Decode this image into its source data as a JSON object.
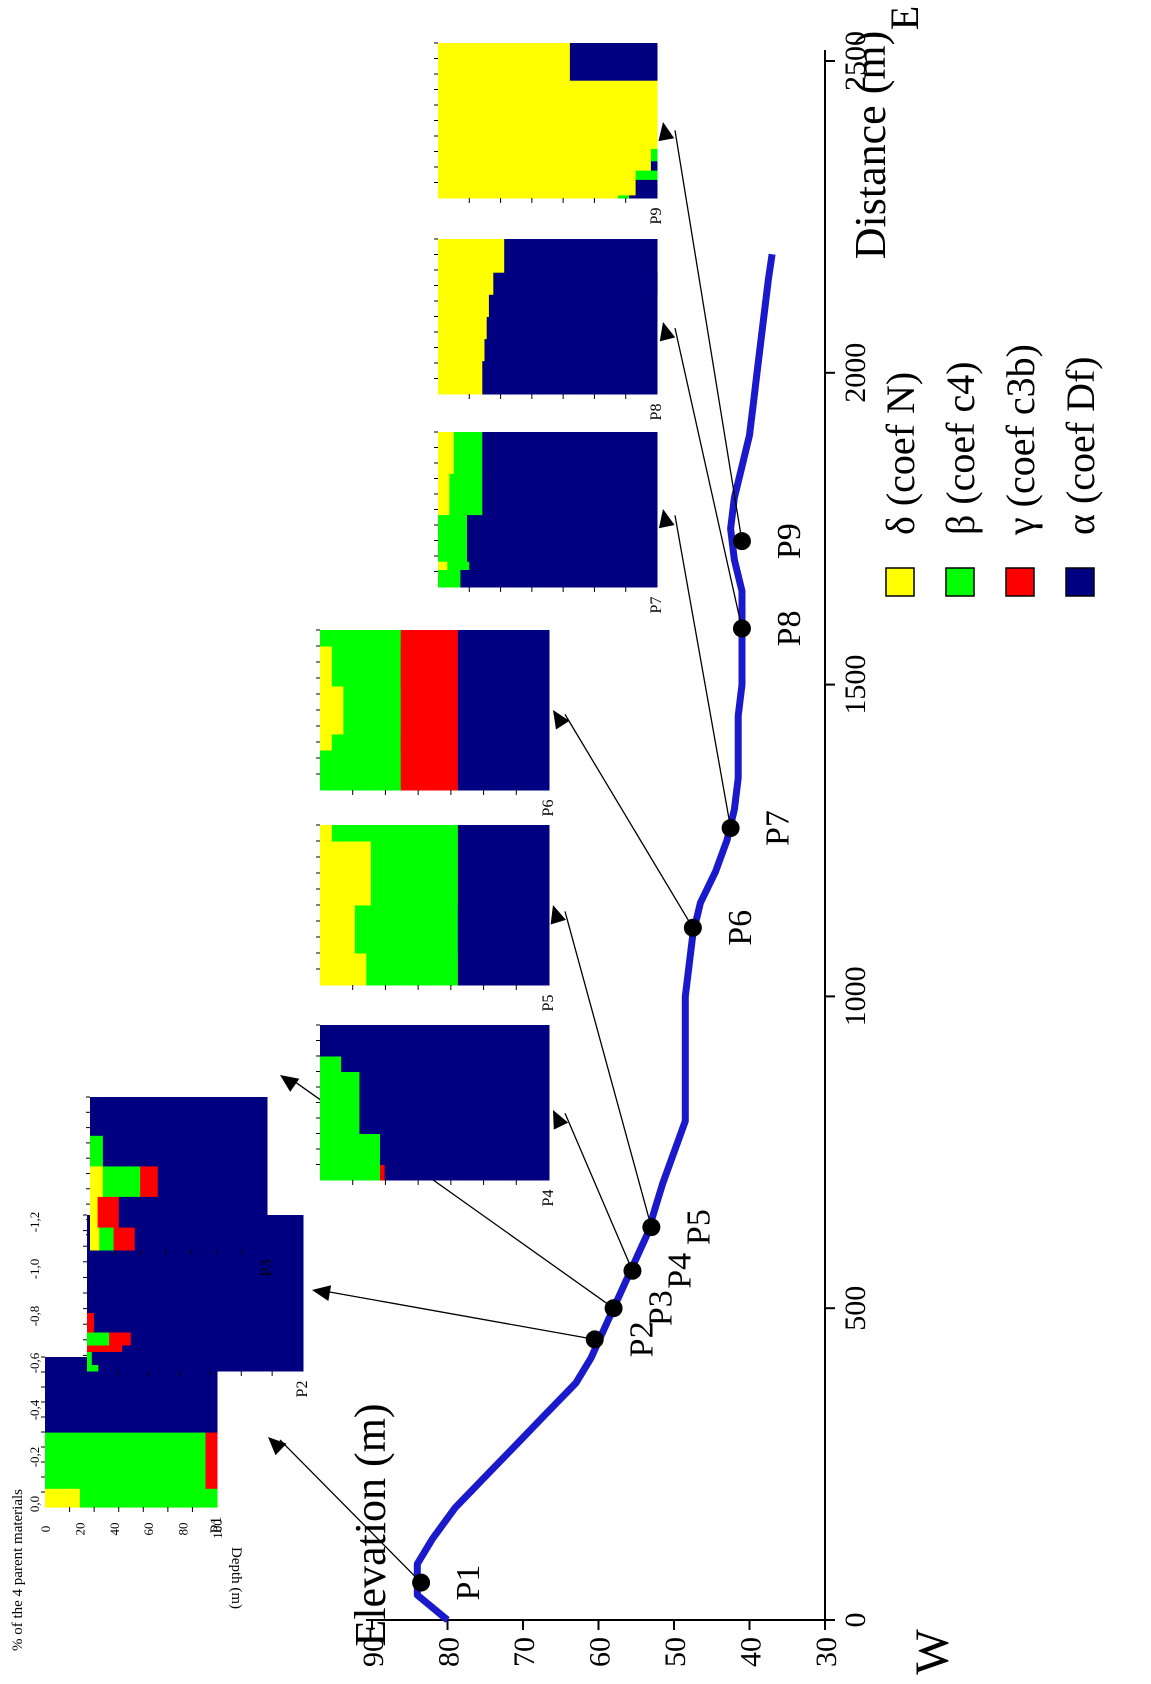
{
  "chart_data": [
    {
      "type": "line",
      "xlabel": "Distance (m)",
      "ylabel": "Elevation (m)",
      "xlim": [
        0,
        2500
      ],
      "ylim": [
        30,
        90
      ],
      "x_ticks": [
        0,
        500,
        1000,
        1500,
        2000,
        2500
      ],
      "y_ticks": [
        30,
        40,
        50,
        60,
        70,
        80,
        90
      ],
      "direction_start": "W",
      "direction_end": "E",
      "orientation": "rotated 90 degrees counter-clockwise",
      "series": [
        {
          "color": "#1a1acc",
          "x": [
            0,
            40,
            90,
            130,
            180,
            230,
            280,
            330,
            380,
            420,
            460,
            500,
            540,
            580,
            620,
            660,
            700,
            750,
            800,
            850,
            900,
            950,
            1000,
            1050,
            1100,
            1150,
            1200,
            1250,
            1300,
            1350,
            1400,
            1450,
            1500,
            1550,
            1600,
            1650,
            1700,
            1750,
            1800,
            1850,
            1900,
            1950,
            2000,
            2050,
            2100,
            2150,
            2190
          ],
          "y": [
            80,
            84,
            84,
            82,
            79,
            75,
            71,
            67,
            63,
            61,
            59.5,
            58,
            56.5,
            55,
            53.5,
            52.5,
            51.5,
            50,
            48.5,
            48.5,
            48.5,
            48.5,
            48.5,
            48,
            47.5,
            46.5,
            44.5,
            43,
            42,
            41.5,
            41.5,
            41.5,
            41,
            41,
            41,
            41,
            42,
            42.5,
            42,
            41,
            40,
            39.5,
            39,
            38.5,
            38,
            37.5,
            37
          ]
        }
      ],
      "points": [
        {
          "label": "P1",
          "x": 60,
          "y": 83.5
        },
        {
          "label": "P2",
          "x": 450,
          "y": 60.5
        },
        {
          "label": "P3",
          "x": 500,
          "y": 58
        },
        {
          "label": "P4",
          "x": 560,
          "y": 55.5
        },
        {
          "label": "P5",
          "x": 630,
          "y": 53
        },
        {
          "label": "P6",
          "x": 1110,
          "y": 47.5
        },
        {
          "label": "P7",
          "x": 1270,
          "y": 42.5
        },
        {
          "label": "P8",
          "x": 1590,
          "y": 41
        },
        {
          "label": "P9",
          "x": 1730,
          "y": 41
        }
      ]
    },
    {
      "type": "area",
      "xlabel": "% of the 4 parent materials",
      "ylabel": "Depth (m)",
      "x_ticks": [
        "0",
        "20",
        "40",
        "60",
        "80",
        "100"
      ],
      "y_ticks": [
        "0,0",
        "-0,2",
        "-0,4",
        "-0,6",
        "-0,8",
        "-1,0",
        "-1,2"
      ],
      "series_order": [
        "α (coef Df)",
        "γ (coef c3b)",
        "β (coef c4)",
        "δ (coef N)"
      ],
      "profiles": [
        {
          "label": "P1",
          "layers": [
            {
              "depth": [
                0,
                0.1
              ],
              "pct": [
                0,
                0,
                80,
                20
              ]
            },
            {
              "depth": [
                0.1,
                0.4
              ],
              "pct": [
                0,
                7,
                93,
                0
              ]
            },
            {
              "depth": [
                0.4,
                0.5
              ],
              "pct": [
                100,
                0,
                0,
                0
              ]
            },
            {
              "depth": [
                0.5,
                0.8
              ],
              "pct": [
                100,
                0,
                0,
                0
              ]
            }
          ]
        },
        {
          "label": "P2",
          "layers": [
            {
              "depth": [
                0,
                0.05
              ],
              "pct": [
                95,
                0,
                5,
                0
              ]
            },
            {
              "depth": [
                0.05,
                0.15
              ],
              "pct": [
                98,
                0,
                2,
                0
              ]
            },
            {
              "depth": [
                0.15,
                0.2
              ],
              "pct": [
                84,
                16,
                0,
                0
              ]
            },
            {
              "depth": [
                0.2,
                0.3
              ],
              "pct": [
                80,
                10,
                10,
                0
              ]
            },
            {
              "depth": [
                0.3,
                0.45
              ],
              "pct": [
                97,
                3,
                0,
                0
              ]
            },
            {
              "depth": [
                0.45,
                1.2
              ],
              "pct": [
                100,
                0,
                0,
                0
              ]
            }
          ]
        },
        {
          "label": "P3",
          "layers": [
            {
              "depth": [
                0,
                0.15
              ],
              "pct": [
                75,
                12,
                8,
                5
              ]
            },
            {
              "depth": [
                0.15,
                0.35
              ],
              "pct": [
                84,
                12,
                0,
                4
              ]
            },
            {
              "depth": [
                0.35,
                0.55
              ],
              "pct": [
                62,
                10,
                21,
                7
              ]
            },
            {
              "depth": [
                0.55,
                0.75
              ],
              "pct": [
                93,
                0,
                7,
                0
              ]
            },
            {
              "depth": [
                0.75,
                1.0
              ],
              "pct": [
                100,
                0,
                0,
                0
              ]
            }
          ]
        },
        {
          "label": "P4",
          "layers": [
            {
              "depth": [
                0,
                0.1
              ],
              "pct": [
                72,
                2,
                26,
                0
              ]
            },
            {
              "depth": [
                0.1,
                0.3
              ],
              "pct": [
                74,
                0,
                26,
                0
              ]
            },
            {
              "depth": [
                0.3,
                0.7
              ],
              "pct": [
                83,
                0,
                17,
                0
              ]
            },
            {
              "depth": [
                0.7,
                0.8
              ],
              "pct": [
                91,
                0,
                9,
                0
              ]
            },
            {
              "depth": [
                0.8,
                1.0
              ],
              "pct": [
                100,
                0,
                0,
                0
              ]
            }
          ]
        },
        {
          "label": "P5",
          "layers": [
            {
              "depth": [
                0,
                0.2
              ],
              "pct": [
                40,
                0,
                40,
                20
              ]
            },
            {
              "depth": [
                0.2,
                0.5
              ],
              "pct": [
                40,
                0,
                45,
                15
              ]
            },
            {
              "depth": [
                0.5,
                0.9
              ],
              "pct": [
                40,
                0,
                38,
                22
              ]
            },
            {
              "depth": [
                0.9,
                1.0
              ],
              "pct": [
                40,
                0,
                55,
                5
              ]
            }
          ]
        },
        {
          "label": "P6",
          "layers": [
            {
              "depth": [
                0,
                0.25
              ],
              "pct": [
                40,
                25,
                35,
                0
              ]
            },
            {
              "depth": [
                0.25,
                0.35
              ],
              "pct": [
                40,
                25,
                30,
                5
              ]
            },
            {
              "depth": [
                0.35,
                0.65
              ],
              "pct": [
                40,
                25,
                25,
                10
              ]
            },
            {
              "depth": [
                0.65,
                0.9
              ],
              "pct": [
                40,
                25,
                30,
                5
              ]
            },
            {
              "depth": [
                0.9,
                1.0
              ],
              "pct": [
                40,
                25,
                35,
                0
              ]
            }
          ]
        },
        {
          "label": "P7",
          "layers": [
            {
              "depth": [
                0,
                0.12
              ],
              "pct": [
                90,
                0,
                10,
                0
              ]
            },
            {
              "depth": [
                0.12,
                0.17
              ],
              "pct": [
                90,
                0,
                10,
                0
              ]
            },
            {
              "depth": [
                0.17,
                0.25
              ],
              "pct": [
                86,
                0,
                10,
                4
              ]
            },
            {
              "depth": [
                0.25,
                0.7
              ],
              "pct": [
                87,
                0,
                13,
                0
              ]
            },
            {
              "depth": [
                0.7,
                1.1
              ],
              "pct": [
                80,
                0,
                15,
                5
              ]
            },
            {
              "depth": [
                1.1,
                1.5
              ],
              "pct": [
                80,
                0,
                13,
                7
              ]
            }
          ]
        },
        {
          "label": "P8",
          "layers": [
            {
              "depth": [
                0,
                0.3
              ],
              "pct": [
                80,
                0,
                0,
                20
              ]
            },
            {
              "depth": [
                0.3,
                0.5
              ],
              "pct": [
                79,
                0,
                0,
                21
              ]
            },
            {
              "depth": [
                0.5,
                0.7
              ],
              "pct": [
                78,
                0,
                0,
                22
              ]
            },
            {
              "depth": [
                0.7,
                0.9
              ],
              "pct": [
                77,
                0,
                0,
                23
              ]
            },
            {
              "depth": [
                0.9,
                1.1
              ],
              "pct": [
                75,
                0,
                0,
                25
              ]
            },
            {
              "depth": [
                1.1,
                1.4
              ],
              "pct": [
                70,
                0,
                0,
                30
              ]
            }
          ]
        },
        {
          "label": "P9",
          "layers": [
            {
              "depth": [
                0,
                0.05
              ],
              "pct": [
                13,
                0,
                5,
                82
              ]
            },
            {
              "depth": [
                0.05,
                0.3
              ],
              "pct": [
                10,
                0,
                0,
                90
              ]
            },
            {
              "depth": [
                0.3,
                0.45
              ],
              "pct": [
                0,
                0,
                10,
                90
              ]
            },
            {
              "depth": [
                0.45,
                0.6
              ],
              "pct": [
                3,
                0,
                0,
                97
              ]
            },
            {
              "depth": [
                0.6,
                0.8
              ],
              "pct": [
                0,
                0,
                3,
                97
              ]
            },
            {
              "depth": [
                0.8,
                1.2
              ],
              "pct": [
                0,
                0,
                0,
                100
              ]
            },
            {
              "depth": [
                1.2,
                1.5
              ],
              "pct": [
                0,
                0,
                0,
                100
              ]
            },
            {
              "depth": [
                1.5,
                1.9
              ],
              "pct": [
                0,
                0,
                0,
                100
              ]
            },
            {
              "depth": [
                1.9,
                2.5
              ],
              "pct": [
                40,
                0,
                0,
                60
              ]
            }
          ]
        }
      ]
    }
  ],
  "legend": [
    {
      "label": "δ (coef N)",
      "color": "#ffff00"
    },
    {
      "label": "β (coef c4)",
      "color": "#00ff00"
    },
    {
      "label": "γ (coef c3b)",
      "color": "#ff0000"
    },
    {
      "label": "α (coef Df)",
      "color": "#000080"
    }
  ]
}
